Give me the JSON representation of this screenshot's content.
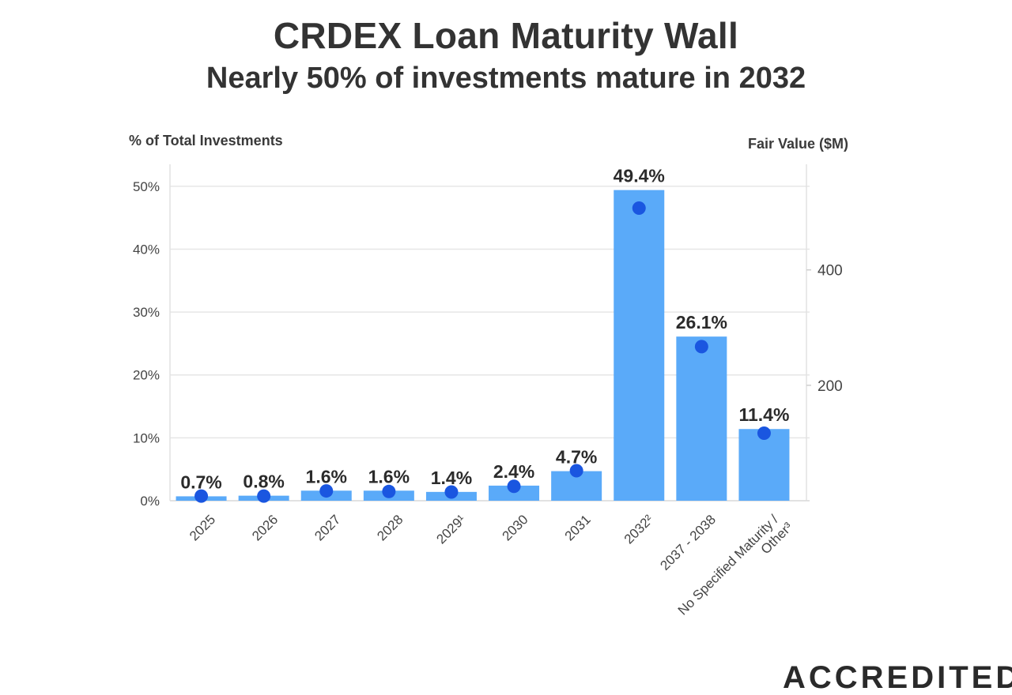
{
  "header": {
    "title": "CRDEX Loan Maturity Wall",
    "subtitle": "Nearly 50% of investments mature in 2032"
  },
  "axes": {
    "left_title": "% of Total Investments",
    "right_title": "Fair Value ($M)"
  },
  "brand": {
    "text": "ACCREDITED"
  },
  "colors": {
    "bar": "#5aaaf9",
    "dot": "#1a56e0",
    "grid": "#e6e6e6",
    "text": "#333333"
  },
  "chart_data": {
    "type": "bar",
    "title": "CRDEX Loan Maturity Wall",
    "subtitle": "Nearly 50% of investments mature in 2032",
    "categories": [
      "2025",
      "2026",
      "2027",
      "2028",
      "2029¹",
      "2030",
      "2031",
      "2032²",
      "2037 - 2038",
      "No Specified Maturity / Other³"
    ],
    "series": [
      {
        "name": "% of Total Investments",
        "axis": "left",
        "kind": "bar",
        "values": [
          0.7,
          0.8,
          1.6,
          1.6,
          1.4,
          2.4,
          4.7,
          49.4,
          26.1,
          11.4
        ],
        "labels": [
          "0.7%",
          "0.8%",
          "1.6%",
          "1.6%",
          "1.4%",
          "2.4%",
          "4.7%",
          "49.4%",
          "26.1%",
          "11.4%"
        ]
      },
      {
        "name": "Fair Value ($M)",
        "axis": "right",
        "kind": "scatter",
        "values": [
          8,
          8,
          17,
          16,
          15,
          25,
          52,
          507,
          267,
          117
        ]
      }
    ],
    "ylim_left": [
      0,
      53.5
    ],
    "yticks_left": [
      0,
      10,
      20,
      30,
      40,
      50
    ],
    "yticks_left_labels": [
      "0%",
      "10%",
      "20%",
      "30%",
      "40%",
      "50%"
    ],
    "ylim_right": [
      0,
      583
    ],
    "yticks_right": [
      200,
      400
    ],
    "yticks_right_labels": [
      "200",
      "400"
    ],
    "ylabel_left": "% of Total Investments",
    "ylabel_right": "Fair Value ($M)",
    "grid": true
  }
}
